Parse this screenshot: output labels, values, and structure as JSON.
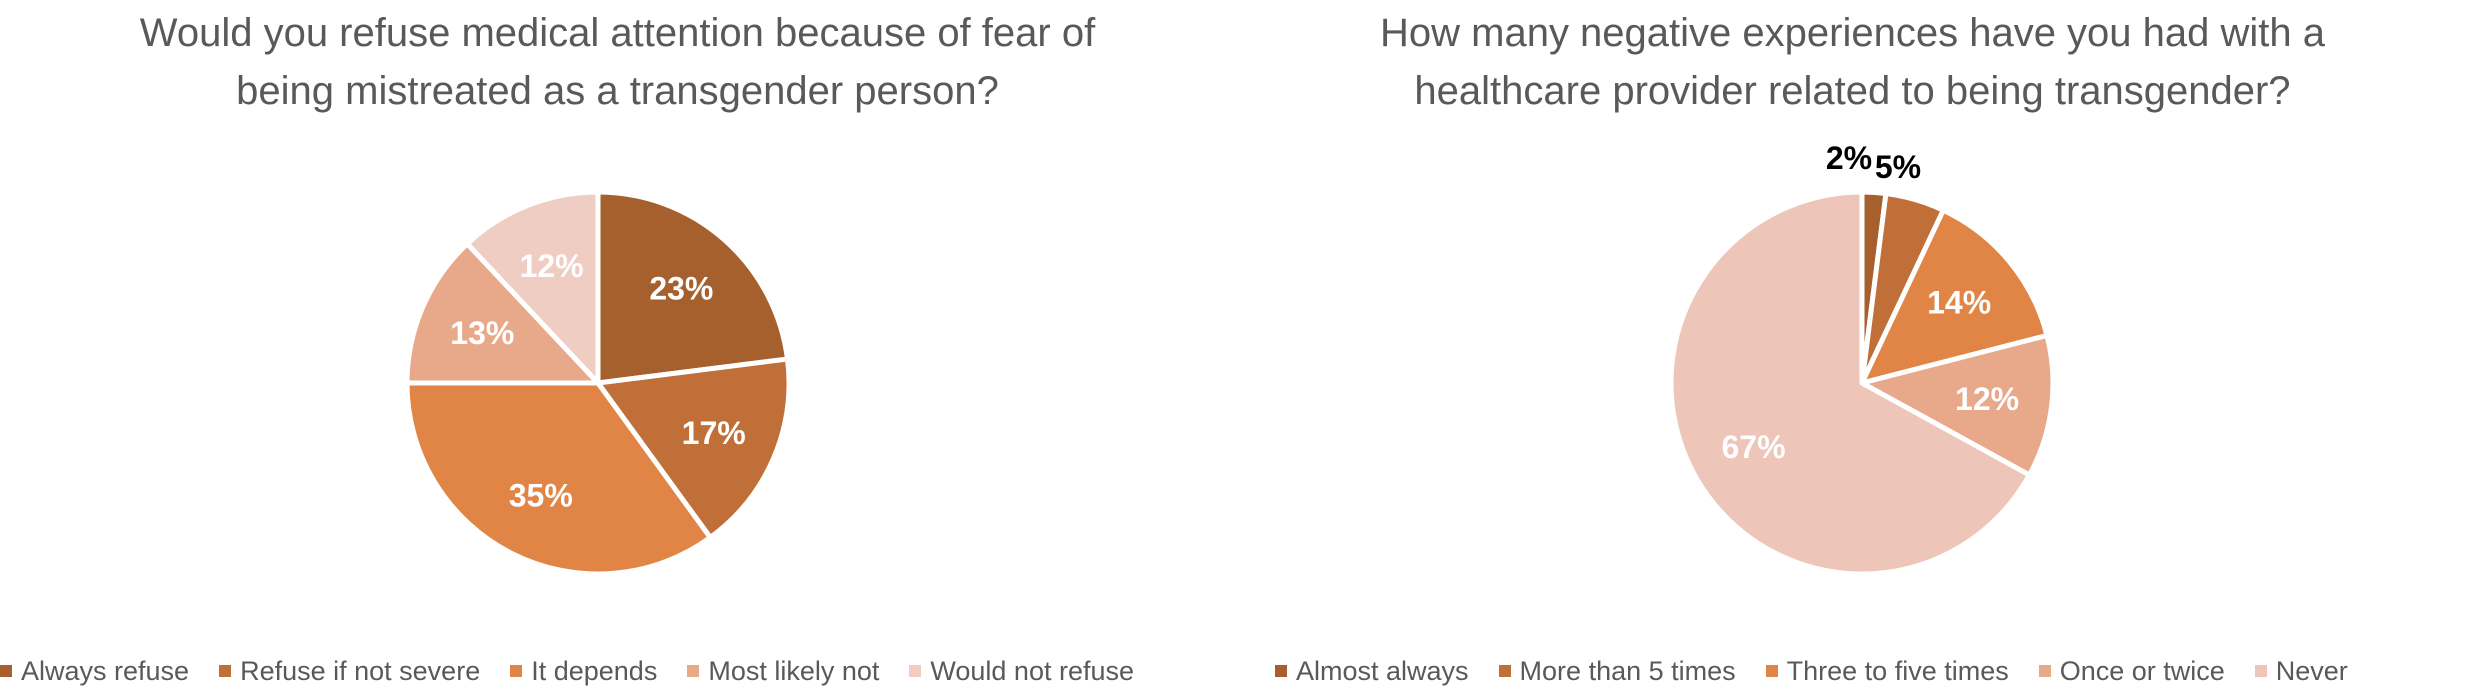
{
  "chart_data": [
    {
      "type": "pie",
      "title": "Would you refuse medical attention because of fear of being mistreated as a transgender person?",
      "title_lines": [
        "Would you refuse medical attention because of fear of",
        "being mistreated as a transgender person?"
      ],
      "categories": [
        "Always refuse",
        "Refuse if not severe",
        "It depends",
        "Most likely not",
        "Would not refuse"
      ],
      "values": [
        23,
        17,
        35,
        13,
        12
      ],
      "labels": [
        "23%",
        "17%",
        "35%",
        "13%",
        "12%"
      ],
      "colors": [
        "#A5602E",
        "#C06F38",
        "#E08545",
        "#E8A98B",
        "#F0CDC2"
      ],
      "label_colors": [
        "#ffffff",
        "#ffffff",
        "#ffffff",
        "#ffffff",
        "#ffffff"
      ],
      "legend": "bottom"
    },
    {
      "type": "pie",
      "title": "How many negative experiences have you had with a healthcare provider related to being transgender?",
      "title_lines": [
        "How many negative experiences have you had with a",
        "healthcare provider related to being transgender?"
      ],
      "categories": [
        "Almost always",
        "More than 5 times",
        "Three to five times",
        "Once or twice",
        "Never"
      ],
      "values": [
        2,
        5,
        14,
        12,
        67
      ],
      "labels": [
        "2%",
        "5%",
        "14%",
        "12%",
        "67%"
      ],
      "colors": [
        "#A5602E",
        "#C06F38",
        "#E08545",
        "#E8A98B",
        "#EEC6B9"
      ],
      "label_colors": [
        "#000000",
        "#000000",
        "#ffffff",
        "#ffffff",
        "#ffffff"
      ],
      "legend": "bottom"
    }
  ]
}
